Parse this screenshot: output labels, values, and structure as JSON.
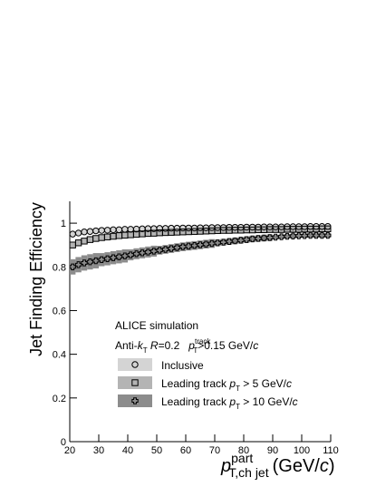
{
  "chart_data": {
    "type": "scatter",
    "ylabel": "Jet Finding Efficiency",
    "xlabel": [
      {
        "text": "p",
        "style": "i"
      },
      {
        "text": "part",
        "style": "sup"
      },
      {
        "text": "T,ch jet",
        "style": "sub"
      },
      {
        "text": "(GeV/",
        "style": ""
      },
      {
        "text": "c",
        "style": "i"
      },
      {
        "text": ")",
        "style": ""
      }
    ],
    "annotations": [
      [
        {
          "text": "ALICE simulation",
          "style": ""
        }
      ],
      [
        {
          "text": "Anti-",
          "style": ""
        },
        {
          "text": "k",
          "style": "i"
        },
        {
          "text": "T",
          "style": "sub"
        },
        {
          "text": " ",
          "style": ""
        },
        {
          "text": "R",
          "style": "i"
        },
        {
          "text": "=0.2   ",
          "style": ""
        },
        {
          "text": "p",
          "style": "i"
        },
        {
          "text": "track",
          "style": "sup"
        },
        {
          "text": "T",
          "style": "sub"
        },
        {
          "text": ">0.15 GeV/",
          "style": ""
        },
        {
          "text": "c",
          "style": "i"
        }
      ]
    ],
    "xlim": [
      20,
      110
    ],
    "ylim": [
      0,
      1.1
    ],
    "xticks": [
      20,
      30,
      40,
      50,
      60,
      70,
      80,
      90,
      100,
      110
    ],
    "yticks": [
      0,
      0.2,
      0.4,
      0.6,
      0.8,
      1
    ],
    "x": [
      21,
      23,
      25,
      27,
      29,
      31,
      33,
      35,
      37,
      39,
      41,
      43,
      45,
      47,
      49,
      51,
      53,
      55,
      57,
      59,
      61,
      63,
      65,
      67,
      69,
      71,
      73,
      75,
      77,
      79,
      81,
      83,
      85,
      87,
      89,
      91,
      93,
      95,
      97,
      99,
      101,
      103,
      105,
      107,
      109
    ],
    "series": [
      {
        "name": [
          {
            "text": "Inclusive",
            "style": ""
          }
        ],
        "marker": "circle",
        "color": "#d4d4d4",
        "values": [
          0.95,
          0.955,
          0.96,
          0.962,
          0.965,
          0.967,
          0.968,
          0.97,
          0.97,
          0.972,
          0.972,
          0.973,
          0.974,
          0.975,
          0.975,
          0.976,
          0.976,
          0.977,
          0.977,
          0.978,
          0.978,
          0.978,
          0.979,
          0.979,
          0.98,
          0.98,
          0.98,
          0.981,
          0.981,
          0.981,
          0.982,
          0.982,
          0.982,
          0.983,
          0.983,
          0.983,
          0.983,
          0.984,
          0.984,
          0.984,
          0.984,
          0.985,
          0.985,
          0.985,
          0.985
        ],
        "errors": [
          0.01,
          0.01,
          0.01,
          0.01,
          0.01,
          0.01,
          0.01,
          0.01,
          0.01,
          0.01,
          0.01,
          0.01,
          0.01,
          0.01,
          0.01,
          0.01,
          0.01,
          0.01,
          0.01,
          0.01,
          0.01,
          0.01,
          0.01,
          0.01,
          0.01,
          0.01,
          0.01,
          0.01,
          0.01,
          0.01,
          0.01,
          0.01,
          0.01,
          0.01,
          0.01,
          0.01,
          0.01,
          0.01,
          0.01,
          0.01,
          0.01,
          0.01,
          0.01,
          0.01,
          0.01
        ]
      },
      {
        "name": [
          {
            "text": "Leading track ",
            "style": ""
          },
          {
            "text": "p",
            "style": "i"
          },
          {
            "text": "T",
            "style": "sub"
          },
          {
            "text": " > 5 GeV/",
            "style": ""
          },
          {
            "text": "c",
            "style": "i"
          }
        ],
        "marker": "square",
        "color": "#b4b4b4",
        "values": [
          0.9,
          0.91,
          0.918,
          0.925,
          0.93,
          0.934,
          0.937,
          0.94,
          0.943,
          0.945,
          0.947,
          0.949,
          0.951,
          0.953,
          0.954,
          0.956,
          0.957,
          0.958,
          0.959,
          0.96,
          0.961,
          0.962,
          0.963,
          0.964,
          0.965,
          0.966,
          0.967,
          0.967,
          0.968,
          0.968,
          0.969,
          0.969,
          0.97,
          0.97,
          0.971,
          0.971,
          0.971,
          0.972,
          0.972,
          0.972,
          0.973,
          0.973,
          0.973,
          0.974,
          0.974
        ],
        "errors": [
          0.015,
          0.015,
          0.015,
          0.015,
          0.015,
          0.015,
          0.015,
          0.015,
          0.015,
          0.015,
          0.015,
          0.015,
          0.015,
          0.015,
          0.015,
          0.015,
          0.015,
          0.015,
          0.015,
          0.015,
          0.015,
          0.015,
          0.015,
          0.015,
          0.015,
          0.015,
          0.015,
          0.015,
          0.015,
          0.015,
          0.015,
          0.015,
          0.015,
          0.015,
          0.015,
          0.015,
          0.015,
          0.015,
          0.015,
          0.015,
          0.015,
          0.015,
          0.015,
          0.015,
          0.015
        ]
      },
      {
        "name": [
          {
            "text": "Leading track ",
            "style": ""
          },
          {
            "text": "p",
            "style": "i"
          },
          {
            "text": "T",
            "style": "sub"
          },
          {
            "text": " > 10 GeV/",
            "style": ""
          },
          {
            "text": "c",
            "style": "i"
          }
        ],
        "marker": "cross",
        "color": "#8c8c8c",
        "values": [
          0.8,
          0.81,
          0.818,
          0.823,
          0.828,
          0.833,
          0.837,
          0.842,
          0.846,
          0.85,
          0.855,
          0.86,
          0.864,
          0.868,
          0.872,
          0.876,
          0.88,
          0.884,
          0.888,
          0.892,
          0.895,
          0.898,
          0.901,
          0.904,
          0.907,
          0.91,
          0.913,
          0.916,
          0.919,
          0.922,
          0.925,
          0.928,
          0.93,
          0.932,
          0.934,
          0.936,
          0.938,
          0.94,
          0.941,
          0.942,
          0.943,
          0.944,
          0.944,
          0.944,
          0.944
        ],
        "errors": [
          0.035,
          0.035,
          0.035,
          0.035,
          0.035,
          0.03,
          0.03,
          0.03,
          0.03,
          0.03,
          0.025,
          0.025,
          0.025,
          0.025,
          0.025,
          0.02,
          0.02,
          0.02,
          0.02,
          0.02,
          0.02,
          0.02,
          0.02,
          0.02,
          0.02,
          0.015,
          0.015,
          0.015,
          0.015,
          0.015,
          0.015,
          0.015,
          0.015,
          0.015,
          0.015,
          0.01,
          0.01,
          0.01,
          0.01,
          0.01,
          0.01,
          0.01,
          0.01,
          0.01,
          0.01
        ]
      }
    ]
  }
}
